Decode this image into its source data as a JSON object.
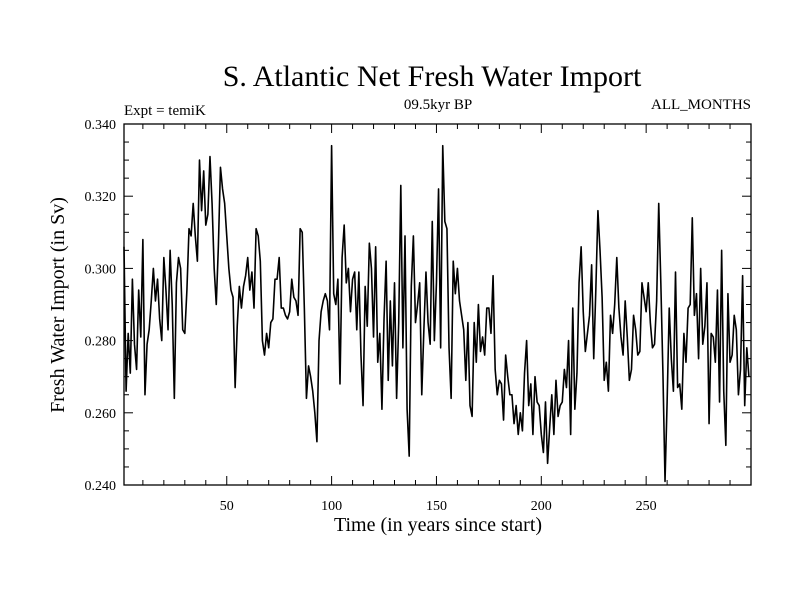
{
  "chart_data": {
    "type": "line",
    "title": "S. Atlantic Net Fresh Water Import",
    "subtitle_left": "Expt = temiK",
    "subtitle_center": "09.5kyr BP",
    "subtitle_right": "ALL_MONTHS",
    "xlabel": "Time (in years since start)",
    "ylabel": "Fresh Water Import (in Sv)",
    "xlim": [
      1,
      300
    ],
    "ylim": [
      0.24,
      0.34
    ],
    "x_ticks": [
      50,
      100,
      150,
      200,
      250
    ],
    "x_tick_labels": [
      "50",
      "100",
      "150",
      "200",
      "250"
    ],
    "y_ticks": [
      0.24,
      0.26,
      0.28,
      0.3,
      0.32,
      0.34
    ],
    "y_tick_labels": [
      "0.240",
      "0.260",
      "0.280",
      "0.300",
      "0.320",
      "0.340"
    ],
    "grid": false,
    "series": [
      {
        "name": "Net Fresh Water Import",
        "x_start": 1,
        "x_step": 1,
        "values": [
          0.306,
          0.266,
          0.282,
          0.271,
          0.297,
          0.279,
          0.272,
          0.294,
          0.281,
          0.308,
          0.265,
          0.279,
          0.283,
          0.291,
          0.3,
          0.291,
          0.297,
          0.286,
          0.28,
          0.303,
          0.294,
          0.283,
          0.305,
          0.29,
          0.264,
          0.296,
          0.303,
          0.3,
          0.283,
          0.282,
          0.294,
          0.311,
          0.309,
          0.318,
          0.309,
          0.302,
          0.33,
          0.316,
          0.327,
          0.312,
          0.315,
          0.331,
          0.318,
          0.3,
          0.29,
          0.306,
          0.328,
          0.322,
          0.318,
          0.309,
          0.3,
          0.294,
          0.292,
          0.267,
          0.284,
          0.295,
          0.289,
          0.295,
          0.298,
          0.303,
          0.294,
          0.299,
          0.289,
          0.311,
          0.309,
          0.302,
          0.28,
          0.276,
          0.282,
          0.278,
          0.285,
          0.286,
          0.297,
          0.297,
          0.303,
          0.289,
          0.289,
          0.287,
          0.286,
          0.288,
          0.297,
          0.292,
          0.291,
          0.287,
          0.311,
          0.31,
          0.289,
          0.264,
          0.273,
          0.27,
          0.266,
          0.26,
          0.252,
          0.28,
          0.288,
          0.291,
          0.293,
          0.291,
          0.283,
          0.334,
          0.293,
          0.29,
          0.297,
          0.268,
          0.303,
          0.312,
          0.296,
          0.3,
          0.288,
          0.297,
          0.299,
          0.283,
          0.299,
          0.276,
          0.262,
          0.295,
          0.284,
          0.307,
          0.3,
          0.281,
          0.306,
          0.274,
          0.282,
          0.261,
          0.286,
          0.302,
          0.269,
          0.291,
          0.273,
          0.296,
          0.264,
          0.285,
          0.323,
          0.278,
          0.309,
          0.261,
          0.248,
          0.295,
          0.309,
          0.285,
          0.29,
          0.296,
          0.265,
          0.283,
          0.299,
          0.285,
          0.279,
          0.313,
          0.28,
          0.296,
          0.322,
          0.278,
          0.334,
          0.313,
          0.311,
          0.278,
          0.264,
          0.302,
          0.293,
          0.3,
          0.291,
          0.287,
          0.283,
          0.269,
          0.285,
          0.262,
          0.259,
          0.285,
          0.274,
          0.29,
          0.277,
          0.281,
          0.276,
          0.289,
          0.289,
          0.282,
          0.298,
          0.272,
          0.265,
          0.269,
          0.268,
          0.258,
          0.276,
          0.27,
          0.265,
          0.265,
          0.257,
          0.262,
          0.254,
          0.26,
          0.255,
          0.271,
          0.28,
          0.262,
          0.268,
          0.254,
          0.27,
          0.263,
          0.262,
          0.254,
          0.249,
          0.263,
          0.246,
          0.256,
          0.265,
          0.254,
          0.269,
          0.259,
          0.262,
          0.263,
          0.272,
          0.267,
          0.28,
          0.254,
          0.289,
          0.261,
          0.271,
          0.296,
          0.306,
          0.288,
          0.277,
          0.282,
          0.287,
          0.301,
          0.275,
          0.294,
          0.316,
          0.305,
          0.292,
          0.269,
          0.274,
          0.266,
          0.287,
          0.282,
          0.29,
          0.303,
          0.289,
          0.281,
          0.276,
          0.291,
          0.281,
          0.269,
          0.272,
          0.287,
          0.283,
          0.276,
          0.277,
          0.296,
          0.292,
          0.288,
          0.296,
          0.285,
          0.278,
          0.279,
          0.291,
          0.318,
          0.296,
          0.271,
          0.241,
          0.263,
          0.289,
          0.275,
          0.266,
          0.299,
          0.267,
          0.268,
          0.261,
          0.282,
          0.274,
          0.289,
          0.29,
          0.314,
          0.287,
          0.293,
          0.275,
          0.3,
          0.279,
          0.284,
          0.296,
          0.257,
          0.282,
          0.281,
          0.274,
          0.294,
          0.263,
          0.305,
          0.266,
          0.251,
          0.293,
          0.274,
          0.276,
          0.287,
          0.283,
          0.265,
          0.272,
          0.298,
          0.262,
          0.278,
          0.27
        ]
      }
    ]
  }
}
